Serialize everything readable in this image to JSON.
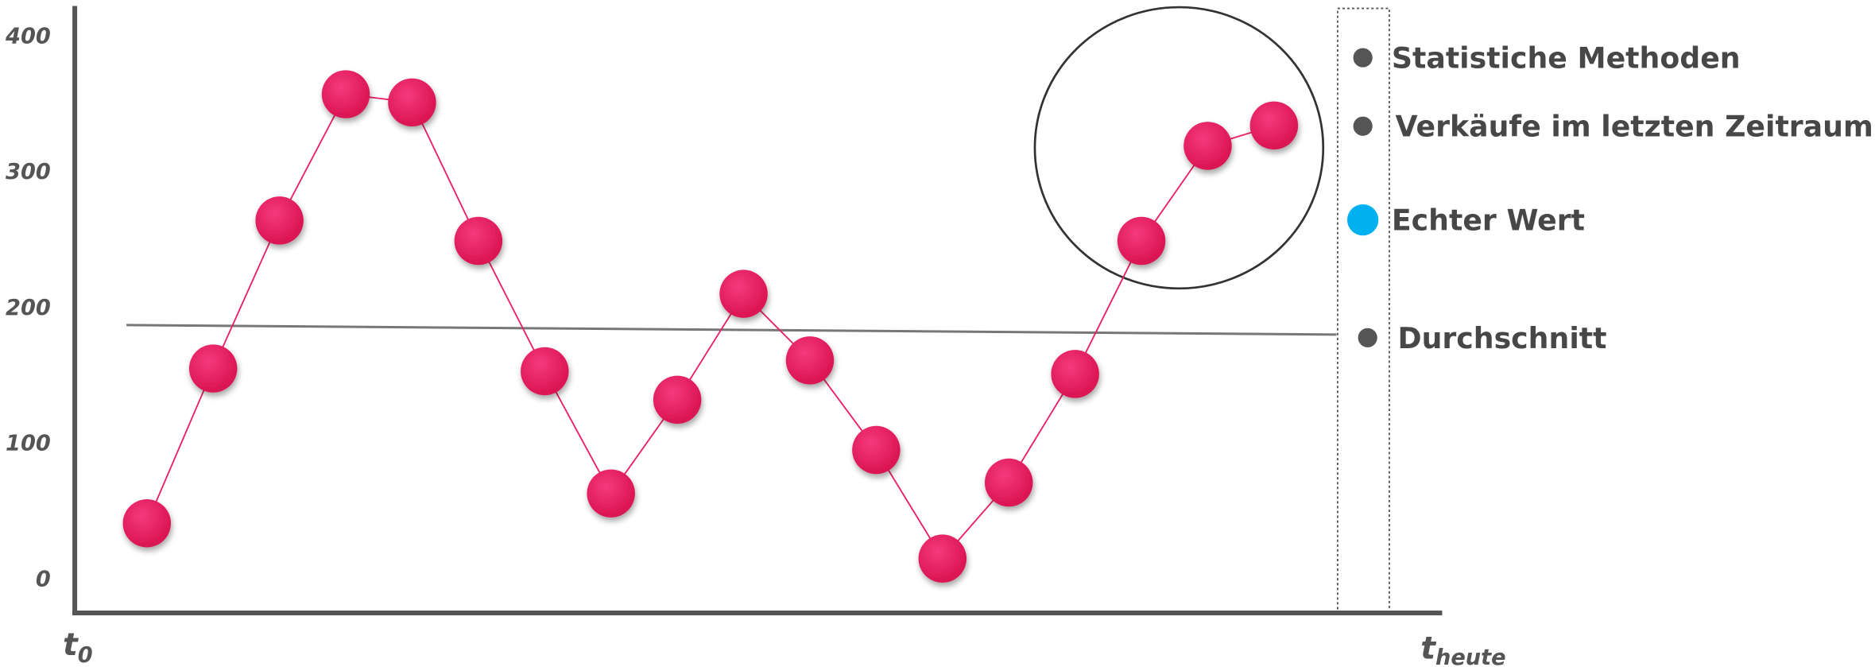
{
  "chart_data": {
    "type": "line",
    "series": [
      {
        "name": "Verkäufe im letzten Zeitraum",
        "color": "#ec1c64",
        "values": [
          42,
          156,
          265,
          358,
          352,
          250,
          154,
          64,
          133,
          211,
          162,
          96,
          16,
          72,
          152,
          250,
          320,
          335
        ]
      }
    ],
    "ylim": [
      -24,
      423
    ],
    "yticks": [
      0,
      100,
      200,
      300,
      400
    ],
    "average_line": {
      "name": "Durchschnitt",
      "values": [
        188,
        181
      ]
    },
    "x_start_label": {
      "base": "t",
      "sub": "0"
    },
    "x_end_label": {
      "base": "t",
      "sub": "heute"
    },
    "legend": [
      {
        "name": "Statistiche Methoden",
        "color": "#555555"
      },
      {
        "name": "Verkäufe im letzten Zeitraum",
        "color": "#555555"
      },
      {
        "name": "Echter Wert",
        "color": "#00b0f0"
      },
      {
        "name": "Durchschnitt",
        "color": "#555555"
      }
    ]
  }
}
